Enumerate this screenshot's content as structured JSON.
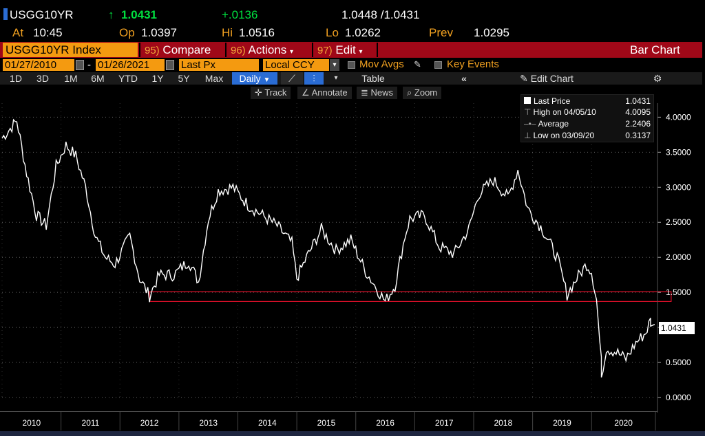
{
  "header": {
    "ticker": "USGG10YR",
    "last_arrow": "↑",
    "last_value": "1.0431",
    "change": "+.0136",
    "bid_ask": "1.0448 /1.0431",
    "at_label": "At",
    "at_time": "10:45",
    "op_label": "Op",
    "op_value": "1.0397",
    "hi_label": "Hi",
    "hi_value": "1.0516",
    "lo_label": "Lo",
    "lo_value": "1.0262",
    "prev_label": "Prev",
    "prev_value": "1.0295"
  },
  "menu": {
    "security": "USGG10YR Index",
    "compare_num": "95)",
    "compare": "Compare",
    "actions_num": "96)",
    "actions": "Actions",
    "edit_num": "97)",
    "edit": "Edit",
    "chart_type": "Bar Chart"
  },
  "settings": {
    "start_date": "01/27/2010",
    "dash": "-",
    "end_date": "01/26/2021",
    "price_field": "Last Px",
    "currency": "Local CCY",
    "mov_avgs": "Mov Avgs",
    "key_events": "Key Events"
  },
  "timeframes": [
    "1D",
    "3D",
    "1M",
    "6M",
    "YTD",
    "1Y",
    "5Y",
    "Max"
  ],
  "period": "Daily",
  "table_label": "Table",
  "edit_chart": "Edit Chart",
  "tools": {
    "track": "Track",
    "annotate": "Annotate",
    "news": "News",
    "zoom": "Zoom"
  },
  "legend": {
    "last_price_label": "Last Price",
    "last_price_value": "1.0431",
    "high_label": "High on 04/05/10",
    "high_value": "4.0095",
    "average_label": "Average",
    "average_value": "2.2406",
    "low_label": "Low on 03/09/20",
    "low_value": "0.3137"
  },
  "current_tag": "1.0431",
  "colors": {
    "amber": "#f49a10",
    "menu_red": "#a00818",
    "band_red": "#e0102a",
    "selected_blue": "#2a6cd4",
    "price_up": "#00e040"
  },
  "chart_data": {
    "type": "line",
    "series": [
      {
        "values": [
          {
            "x": "2010-01",
            "y": 3.7
          },
          {
            "x": "2010-04",
            "y": 3.95
          },
          {
            "x": "2010-06",
            "y": 3.2
          },
          {
            "x": "2010-08",
            "y": 2.6
          },
          {
            "x": "2010-10",
            "y": 2.45
          },
          {
            "x": "2010-12",
            "y": 3.3
          },
          {
            "x": "2011-02",
            "y": 3.6
          },
          {
            "x": "2011-04",
            "y": 3.45
          },
          {
            "x": "2011-06",
            "y": 3.0
          },
          {
            "x": "2011-08",
            "y": 2.3
          },
          {
            "x": "2011-10",
            "y": 2.0
          },
          {
            "x": "2011-12",
            "y": 1.9
          },
          {
            "x": "2012-03",
            "y": 2.3
          },
          {
            "x": "2012-05",
            "y": 1.7
          },
          {
            "x": "2012-07",
            "y": 1.45
          },
          {
            "x": "2012-09",
            "y": 1.75
          },
          {
            "x": "2012-12",
            "y": 1.75
          },
          {
            "x": "2013-03",
            "y": 1.95
          },
          {
            "x": "2013-05",
            "y": 1.65
          },
          {
            "x": "2013-07",
            "y": 2.55
          },
          {
            "x": "2013-09",
            "y": 2.95
          },
          {
            "x": "2013-12",
            "y": 3.0
          },
          {
            "x": "2014-03",
            "y": 2.75
          },
          {
            "x": "2014-06",
            "y": 2.6
          },
          {
            "x": "2014-09",
            "y": 2.45
          },
          {
            "x": "2014-12",
            "y": 2.2
          },
          {
            "x": "2015-01",
            "y": 1.7
          },
          {
            "x": "2015-03",
            "y": 2.0
          },
          {
            "x": "2015-06",
            "y": 2.4
          },
          {
            "x": "2015-09",
            "y": 2.1
          },
          {
            "x": "2015-12",
            "y": 2.25
          },
          {
            "x": "2016-03",
            "y": 1.8
          },
          {
            "x": "2016-07",
            "y": 1.37
          },
          {
            "x": "2016-09",
            "y": 1.6
          },
          {
            "x": "2016-11",
            "y": 2.3
          },
          {
            "x": "2016-12",
            "y": 2.55
          },
          {
            "x": "2017-03",
            "y": 2.6
          },
          {
            "x": "2017-06",
            "y": 2.15
          },
          {
            "x": "2017-09",
            "y": 2.05
          },
          {
            "x": "2017-12",
            "y": 2.4
          },
          {
            "x": "2018-02",
            "y": 2.9
          },
          {
            "x": "2018-05",
            "y": 3.1
          },
          {
            "x": "2018-08",
            "y": 2.85
          },
          {
            "x": "2018-10",
            "y": 3.25
          },
          {
            "x": "2018-12",
            "y": 2.7
          },
          {
            "x": "2019-03",
            "y": 2.4
          },
          {
            "x": "2019-06",
            "y": 2.0
          },
          {
            "x": "2019-08",
            "y": 1.47
          },
          {
            "x": "2019-10",
            "y": 1.7
          },
          {
            "x": "2019-12",
            "y": 1.9
          },
          {
            "x": "2020-01",
            "y": 1.8
          },
          {
            "x": "2020-02",
            "y": 1.4
          },
          {
            "x": "2020-03",
            "y": 0.5
          },
          {
            "x": "2020-03",
            "y": 0.3137
          },
          {
            "x": "2020-04",
            "y": 0.7
          },
          {
            "x": "2020-06",
            "y": 0.65
          },
          {
            "x": "2020-08",
            "y": 0.55
          },
          {
            "x": "2020-10",
            "y": 0.78
          },
          {
            "x": "2020-12",
            "y": 0.92
          },
          {
            "x": "2021-01",
            "y": 1.1
          },
          {
            "x": "2021-01",
            "y": 1.0431
          }
        ]
      }
    ],
    "x_ticks": [
      "2010",
      "2011",
      "2012",
      "2013",
      "2014",
      "2015",
      "2016",
      "2017",
      "2018",
      "2019",
      "2020"
    ],
    "y_ticks": [
      "0.0000",
      "0.5000",
      "1.0000",
      "1.5000",
      "2.0000",
      "2.5000",
      "3.0000",
      "3.5000",
      "4.0000"
    ],
    "ylim": [
      0,
      4.2
    ],
    "band": {
      "from": "2012-07",
      "to": "2021-01",
      "y_low": 1.37,
      "y_high": 1.51
    },
    "grid": true
  }
}
